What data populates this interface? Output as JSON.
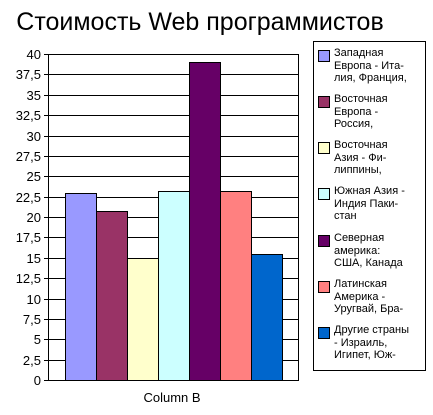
{
  "chart_data": {
    "type": "bar",
    "title": "Стоимость Web программистов",
    "categories": [
      "Column B"
    ],
    "ylim": [
      0,
      40
    ],
    "ytick_step": 2.5,
    "yticks": [
      "0",
      "2,5",
      "5",
      "7,5",
      "10",
      "12,5",
      "15",
      "17,5",
      "20",
      "22,5",
      "25",
      "27,5",
      "30",
      "32,5",
      "35",
      "37,5",
      "40"
    ],
    "grid": true,
    "legend_position": "right",
    "series": [
      {
        "name": "Западная\nЕвропа - Ита-\nлия, Франция,",
        "values": [
          23
        ],
        "color": "#9999ff"
      },
      {
        "name": "Восточная\nЕвропа -\nРоссия,",
        "values": [
          20.7
        ],
        "color": "#993366"
      },
      {
        "name": "Восточная\nАзия - Фи-\nлиппины,",
        "values": [
          15
        ],
        "color": "#ffffcc"
      },
      {
        "name": "Южная Азия -\nИндия Паки-\nстан",
        "values": [
          23.2
        ],
        "color": "#ccffff"
      },
      {
        "name": "Северная\nамерика:\nСША, Канада",
        "values": [
          39
        ],
        "color": "#660066"
      },
      {
        "name": "Латинская\nАмерика -\nУругвай, Бра-",
        "values": [
          23.2
        ],
        "color": "#ff8080"
      },
      {
        "name": "Другие страны\n- Израиль,\nИгипет, Юж-",
        "values": [
          15.5
        ],
        "color": "#0066cc"
      }
    ]
  }
}
